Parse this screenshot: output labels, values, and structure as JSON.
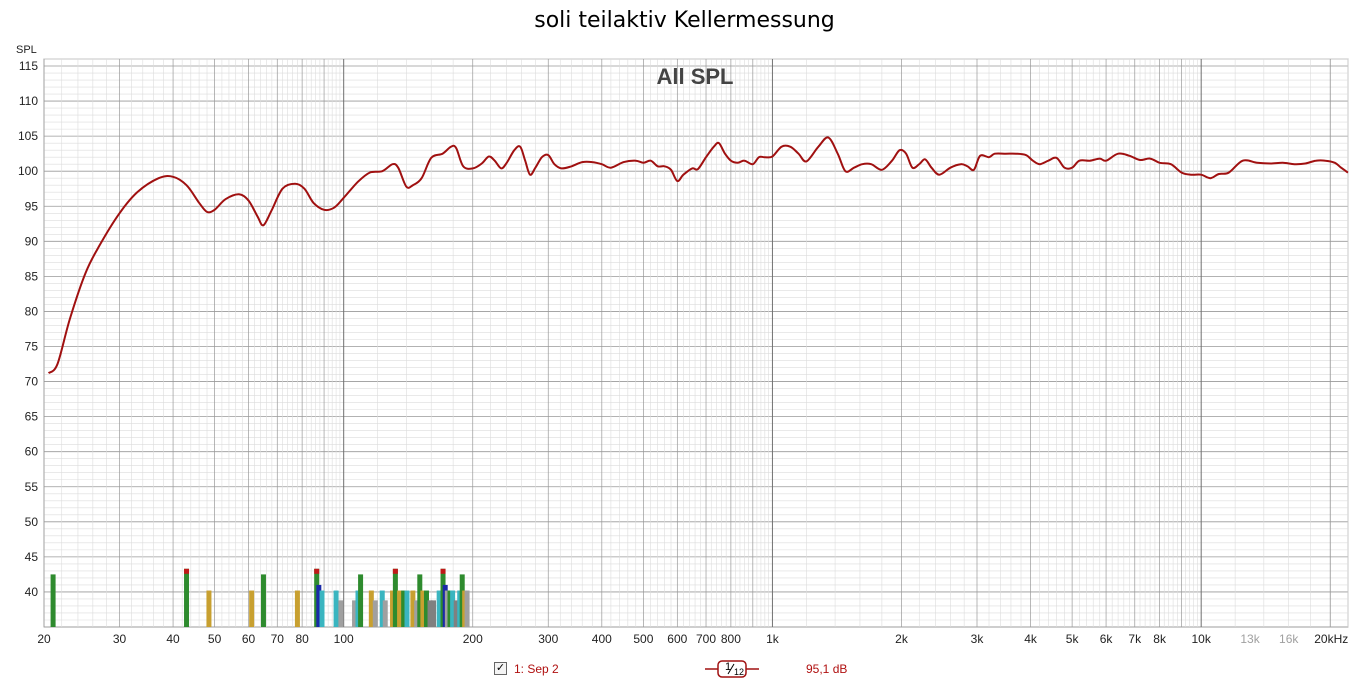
{
  "chart_data": {
    "type": "line",
    "title": "soli teilaktiv Kellermessung",
    "subtitle": "All SPL",
    "ylabel": "SPL",
    "xlabel": "",
    "x_unit": "kHz",
    "x_scale": "log",
    "xlim": [
      20,
      22000
    ],
    "ylim": [
      35,
      116
    ],
    "grid": true,
    "y_ticks": [
      115,
      110,
      105,
      100,
      95,
      90,
      85,
      80,
      75,
      70,
      65,
      60,
      55,
      50,
      45,
      40
    ],
    "x_ticks": [
      {
        "value": 20,
        "label": "20"
      },
      {
        "value": 30,
        "label": "30"
      },
      {
        "value": 40,
        "label": "40"
      },
      {
        "value": 50,
        "label": "50"
      },
      {
        "value": 60,
        "label": "60"
      },
      {
        "value": 70,
        "label": "70"
      },
      {
        "value": 80,
        "label": "80"
      },
      {
        "value": 100,
        "label": "100"
      },
      {
        "value": 200,
        "label": "200"
      },
      {
        "value": 300,
        "label": "300"
      },
      {
        "value": 400,
        "label": "400"
      },
      {
        "value": 500,
        "label": "500"
      },
      {
        "value": 600,
        "label": "600"
      },
      {
        "value": 700,
        "label": "700"
      },
      {
        "value": 800,
        "label": "800"
      },
      {
        "value": 1000,
        "label": "1k"
      },
      {
        "value": 2000,
        "label": "2k"
      },
      {
        "value": 3000,
        "label": "3k"
      },
      {
        "value": 4000,
        "label": "4k"
      },
      {
        "value": 5000,
        "label": "5k"
      },
      {
        "value": 6000,
        "label": "6k"
      },
      {
        "value": 7000,
        "label": "7k"
      },
      {
        "value": 8000,
        "label": "8k"
      },
      {
        "value": 10000,
        "label": "10k"
      },
      {
        "value": 13000,
        "label": "13k",
        "muted": true
      },
      {
        "value": 16000,
        "label": "16k",
        "muted": true
      },
      {
        "value": 20000,
        "label": "20kHz"
      }
    ],
    "series": [
      {
        "name": "1: Sep 2",
        "color": "#a01010",
        "points": [
          [
            20.5,
            71.2
          ],
          [
            21.5,
            72.5
          ],
          [
            23,
            79
          ],
          [
            25,
            85.5
          ],
          [
            27,
            89.5
          ],
          [
            30,
            94
          ],
          [
            33,
            97
          ],
          [
            37,
            99
          ],
          [
            40,
            99.2
          ],
          [
            43,
            98
          ],
          [
            46,
            95.5
          ],
          [
            48,
            94.2
          ],
          [
            50,
            94.5
          ],
          [
            53,
            96
          ],
          [
            57,
            96.7
          ],
          [
            60,
            95.8
          ],
          [
            63,
            93.5
          ],
          [
            65,
            92.3
          ],
          [
            68,
            94.5
          ],
          [
            72,
            97.5
          ],
          [
            77,
            98.2
          ],
          [
            81,
            97.5
          ],
          [
            85,
            95.5
          ],
          [
            90,
            94.5
          ],
          [
            95,
            94.8
          ],
          [
            100,
            96.2
          ],
          [
            108,
            98.5
          ],
          [
            115,
            99.8
          ],
          [
            123,
            100
          ],
          [
            130,
            101
          ],
          [
            134,
            100.5
          ],
          [
            140,
            97.8
          ],
          [
            145,
            98
          ],
          [
            152,
            99
          ],
          [
            160,
            101.9
          ],
          [
            170,
            102.5
          ],
          [
            178,
            103.5
          ],
          [
            183,
            103.3
          ],
          [
            190,
            100.7
          ],
          [
            200,
            100.4
          ],
          [
            210,
            101.1
          ],
          [
            218,
            102.1
          ],
          [
            225,
            101.5
          ],
          [
            233,
            100.4
          ],
          [
            240,
            101.2
          ],
          [
            250,
            103
          ],
          [
            258,
            103.5
          ],
          [
            265,
            101.5
          ],
          [
            272,
            99.5
          ],
          [
            280,
            100.5
          ],
          [
            290,
            102
          ],
          [
            300,
            102.3
          ],
          [
            310,
            101
          ],
          [
            322,
            100.4
          ],
          [
            340,
            100.7
          ],
          [
            360,
            101.3
          ],
          [
            380,
            101.3
          ],
          [
            400,
            101
          ],
          [
            420,
            100.5
          ],
          [
            450,
            101.3
          ],
          [
            480,
            101.5
          ],
          [
            500,
            101.2
          ],
          [
            520,
            101.5
          ],
          [
            540,
            100.7
          ],
          [
            560,
            100.7
          ],
          [
            580,
            100.2
          ],
          [
            600,
            98.6
          ],
          [
            620,
            99.5
          ],
          [
            650,
            100.4
          ],
          [
            670,
            100.3
          ],
          [
            700,
            102
          ],
          [
            730,
            103.5
          ],
          [
            750,
            104
          ],
          [
            775,
            102.5
          ],
          [
            800,
            101.5
          ],
          [
            830,
            101.2
          ],
          [
            860,
            101.5
          ],
          [
            900,
            101
          ],
          [
            930,
            102
          ],
          [
            960,
            102
          ],
          [
            1000,
            102.1
          ],
          [
            1050,
            103.5
          ],
          [
            1100,
            103.5
          ],
          [
            1150,
            102.5
          ],
          [
            1200,
            101.4
          ],
          [
            1280,
            103.5
          ],
          [
            1350,
            104.8
          ],
          [
            1420,
            102.5
          ],
          [
            1480,
            100
          ],
          [
            1550,
            100.5
          ],
          [
            1620,
            101
          ],
          [
            1700,
            101
          ],
          [
            1800,
            100.2
          ],
          [
            1900,
            101.5
          ],
          [
            1980,
            103
          ],
          [
            2050,
            102.5
          ],
          [
            2120,
            100.5
          ],
          [
            2200,
            101
          ],
          [
            2270,
            101.7
          ],
          [
            2350,
            100.5
          ],
          [
            2450,
            99.5
          ],
          [
            2600,
            100.5
          ],
          [
            2750,
            101
          ],
          [
            2850,
            100.7
          ],
          [
            2950,
            100.2
          ],
          [
            3050,
            102.2
          ],
          [
            3200,
            102
          ],
          [
            3300,
            102.5
          ],
          [
            3500,
            102.5
          ],
          [
            3700,
            102.5
          ],
          [
            3900,
            102.3
          ],
          [
            4050,
            101.5
          ],
          [
            4200,
            101
          ],
          [
            4400,
            101.5
          ],
          [
            4600,
            101.9
          ],
          [
            4800,
            100.5
          ],
          [
            5000,
            100.5
          ],
          [
            5200,
            101.5
          ],
          [
            5500,
            101.5
          ],
          [
            5800,
            101.8
          ],
          [
            6000,
            101.5
          ],
          [
            6400,
            102.5
          ],
          [
            6800,
            102.2
          ],
          [
            7200,
            101.6
          ],
          [
            7600,
            101.8
          ],
          [
            8000,
            101.2
          ],
          [
            8500,
            101
          ],
          [
            9000,
            99.8
          ],
          [
            9500,
            99.5
          ],
          [
            10000,
            99.5
          ],
          [
            10500,
            99
          ],
          [
            11000,
            99.6
          ],
          [
            11600,
            99.8
          ],
          [
            12500,
            101.5
          ],
          [
            13500,
            101.2
          ],
          [
            14500,
            101.1
          ],
          [
            15500,
            101.2
          ],
          [
            16500,
            101
          ],
          [
            17500,
            101.1
          ],
          [
            18500,
            101.5
          ],
          [
            19500,
            101.5
          ],
          [
            20500,
            101.2
          ],
          [
            21200,
            100.5
          ],
          [
            22000,
            99.8
          ]
        ]
      }
    ],
    "markers": [
      {
        "x": 21,
        "top": 42.5,
        "color": "#2e8b2e"
      },
      {
        "x": 43,
        "top": 43.3,
        "color": "#2e8b2e",
        "cap": "#c01818"
      },
      {
        "x": 48.5,
        "top": 40.2,
        "color": "#c8a030"
      },
      {
        "x": 61,
        "top": 40.2,
        "color": "#c8a030"
      },
      {
        "x": 65,
        "top": 42.5,
        "color": "#2e8b2e"
      },
      {
        "x": 78,
        "top": 40.2,
        "color": "#c8a030"
      },
      {
        "x": 86.5,
        "top": 43.3,
        "color": "#2e8b2e",
        "cap": "#c01818"
      },
      {
        "x": 87.5,
        "top": 41,
        "color": "#1a2aa8"
      },
      {
        "x": 89,
        "top": 40.2,
        "color": "#3ab5c0"
      },
      {
        "x": 96,
        "top": 40.2,
        "color": "#3ab5c0"
      },
      {
        "x": 98.5,
        "top": 38.8,
        "color": "#a0a0a0"
      },
      {
        "x": 106,
        "top": 38.8,
        "color": "#a0a0a0"
      },
      {
        "x": 108,
        "top": 40.2,
        "color": "#3ab5c0"
      },
      {
        "x": 109.5,
        "top": 42.5,
        "color": "#2e8b2e"
      },
      {
        "x": 116,
        "top": 40.2,
        "color": "#c8a030"
      },
      {
        "x": 118.5,
        "top": 38.8,
        "color": "#a0a0a0"
      },
      {
        "x": 123,
        "top": 40.2,
        "color": "#3ab5c0"
      },
      {
        "x": 125,
        "top": 38.8,
        "color": "#a0a0a0"
      },
      {
        "x": 130,
        "top": 40.2,
        "color": "#c8a030"
      },
      {
        "x": 132,
        "top": 43.3,
        "color": "#2e8b2e",
        "cap": "#c01818"
      },
      {
        "x": 135,
        "top": 40.2,
        "color": "#c8a030"
      },
      {
        "x": 138,
        "top": 40.2,
        "color": "#2e8b2e"
      },
      {
        "x": 140.5,
        "top": 40.2,
        "color": "#3ab5c0"
      },
      {
        "x": 145,
        "top": 40.2,
        "color": "#c8a030"
      },
      {
        "x": 148,
        "top": 38.8,
        "color": "#a0a0a0"
      },
      {
        "x": 150.5,
        "top": 42.5,
        "color": "#2e8b2e"
      },
      {
        "x": 153,
        "top": 40.2,
        "color": "#c8a030"
      },
      {
        "x": 156,
        "top": 40.2,
        "color": "#2e8b2e"
      },
      {
        "x": 159,
        "top": 38.8,
        "color": "#808080"
      },
      {
        "x": 162,
        "top": 38.8,
        "color": "#808080"
      },
      {
        "x": 167,
        "top": 40.2,
        "color": "#3ab5c0"
      },
      {
        "x": 170.5,
        "top": 43.3,
        "color": "#2e8b2e",
        "cap": "#c01818"
      },
      {
        "x": 172.5,
        "top": 41,
        "color": "#1a2aa8"
      },
      {
        "x": 174.5,
        "top": 40.2,
        "color": "#a0a0a0"
      },
      {
        "x": 177,
        "top": 40.2,
        "color": "#2e8b2e"
      },
      {
        "x": 179.5,
        "top": 40.2,
        "color": "#3ab5c0"
      },
      {
        "x": 183,
        "top": 38.8,
        "color": "#808080"
      },
      {
        "x": 186.5,
        "top": 40.2,
        "color": "#3ab5c0"
      },
      {
        "x": 189,
        "top": 42.5,
        "color": "#2e8b2e"
      },
      {
        "x": 191.5,
        "top": 40.2,
        "color": "#c8a030"
      },
      {
        "x": 194,
        "top": 40.2,
        "color": "#a0a0a0"
      }
    ]
  },
  "legend": {
    "checked_mark": "✓",
    "series_label": "1: Sep 2"
  },
  "footer": {
    "smoothing_numerator": "1",
    "smoothing_denominator": "12",
    "level_readout": "95,1 dB"
  },
  "colors": {
    "curve": "#a01010",
    "grid_major": "#999999",
    "grid_minor": "#dcdcdc",
    "grid_decade": "#707070",
    "axis_text": "#222222",
    "muted_text": "#a0a0a0",
    "legend_text": "#b01010"
  }
}
